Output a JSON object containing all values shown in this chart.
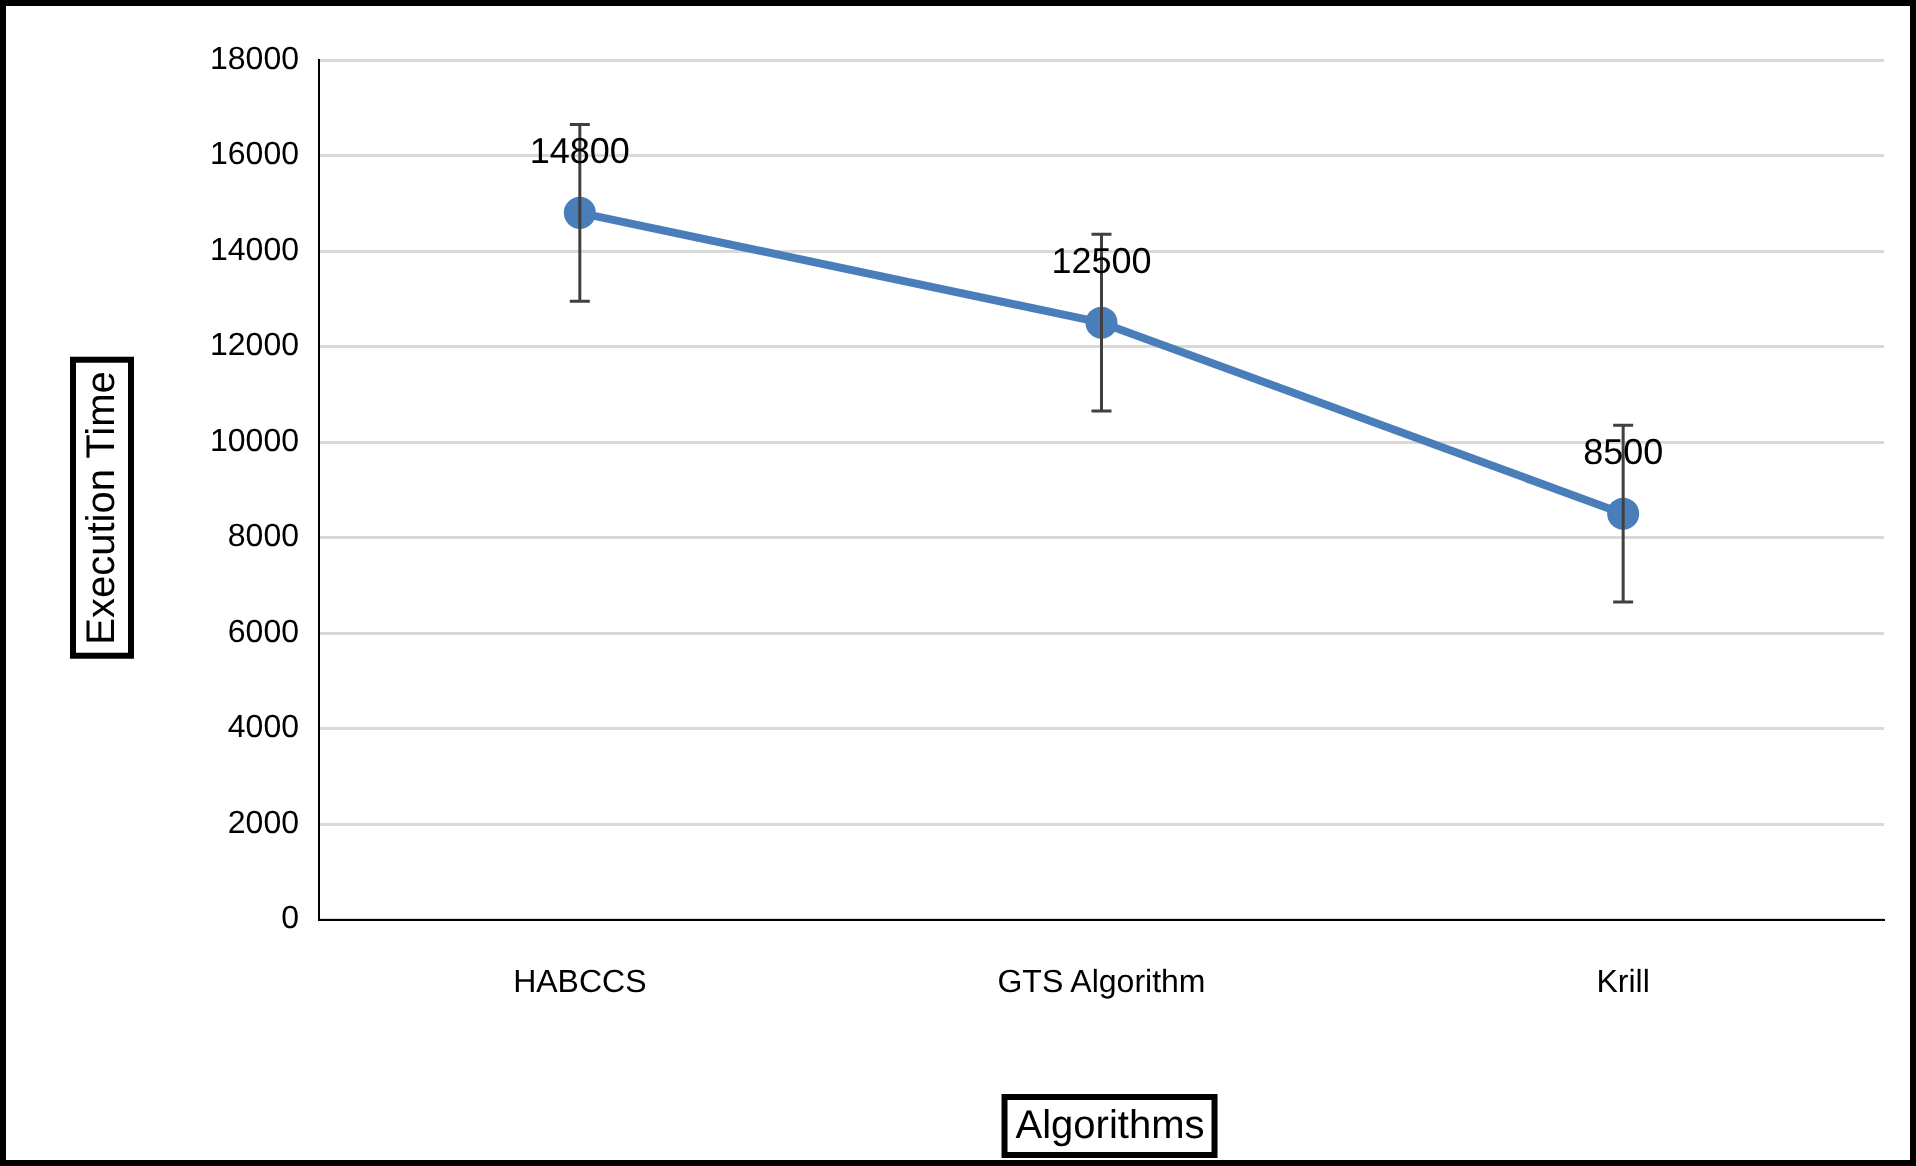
{
  "chart_data": {
    "type": "line",
    "xlabel": "Algorithms",
    "ylabel": "Execution Time",
    "categories": [
      "HABCCS",
      "GTS Algorithm",
      "Krill"
    ],
    "series": [
      {
        "color": "#4a7ebb",
        "values": [
          14800,
          12500,
          8500
        ],
        "errors": [
          1850,
          1850,
          1850
        ]
      }
    ],
    "ylim": [
      0,
      18000
    ],
    "yticks": [
      0,
      2000,
      4000,
      6000,
      8000,
      10000,
      12000,
      14000,
      16000,
      18000
    ],
    "grid": "y",
    "legend": false,
    "marker": "circle",
    "line_style": "solid",
    "data_labels": true
  }
}
